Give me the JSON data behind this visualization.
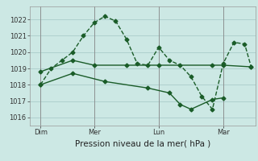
{
  "background_color": "#cce8e4",
  "line_color": "#1a5c28",
  "grid_color": "#aaccca",
  "xlabel": "Pression niveau de la mer( hPa )",
  "ylim": [
    1015.5,
    1022.8
  ],
  "yticks": [
    1016,
    1017,
    1018,
    1019,
    1020,
    1021,
    1022
  ],
  "xlim": [
    0,
    10.5
  ],
  "xtick_positions": [
    0.5,
    3,
    6,
    9
  ],
  "xtick_labels": [
    "Dim",
    "Mer",
    "Lun",
    "Mar"
  ],
  "series1_x": [
    0.5,
    1.0,
    1.5,
    2.0,
    2.5,
    3.0,
    3.5,
    4.0,
    4.5,
    5.0,
    5.5,
    6.0,
    6.5,
    7.0,
    7.5,
    8.0,
    8.5,
    9.0,
    9.5,
    10.0,
    10.3
  ],
  "series1_y": [
    1018.0,
    1019.0,
    1019.5,
    1020.0,
    1021.0,
    1021.8,
    1022.2,
    1021.9,
    1020.8,
    1019.3,
    1019.2,
    1020.3,
    1019.5,
    1019.2,
    1018.5,
    1017.3,
    1016.5,
    1019.3,
    1020.6,
    1020.5,
    1019.1
  ],
  "series2_x": [
    0.5,
    2.0,
    3.0,
    4.5,
    6.0,
    8.5,
    9.0,
    10.3
  ],
  "series2_y": [
    1018.8,
    1019.5,
    1019.2,
    1019.2,
    1019.2,
    1019.2,
    1019.2,
    1019.1
  ],
  "series3_x": [
    0.5,
    2.0,
    3.5,
    5.5,
    6.5,
    7.0,
    7.5,
    8.5,
    9.0
  ],
  "series3_y": [
    1018.0,
    1018.7,
    1018.2,
    1017.8,
    1017.5,
    1016.8,
    1016.5,
    1017.1,
    1017.2
  ],
  "marker": "D",
  "marker_size": 2.5,
  "linewidth": 1.0,
  "tick_fontsize": 6,
  "xlabel_fontsize": 7.5
}
